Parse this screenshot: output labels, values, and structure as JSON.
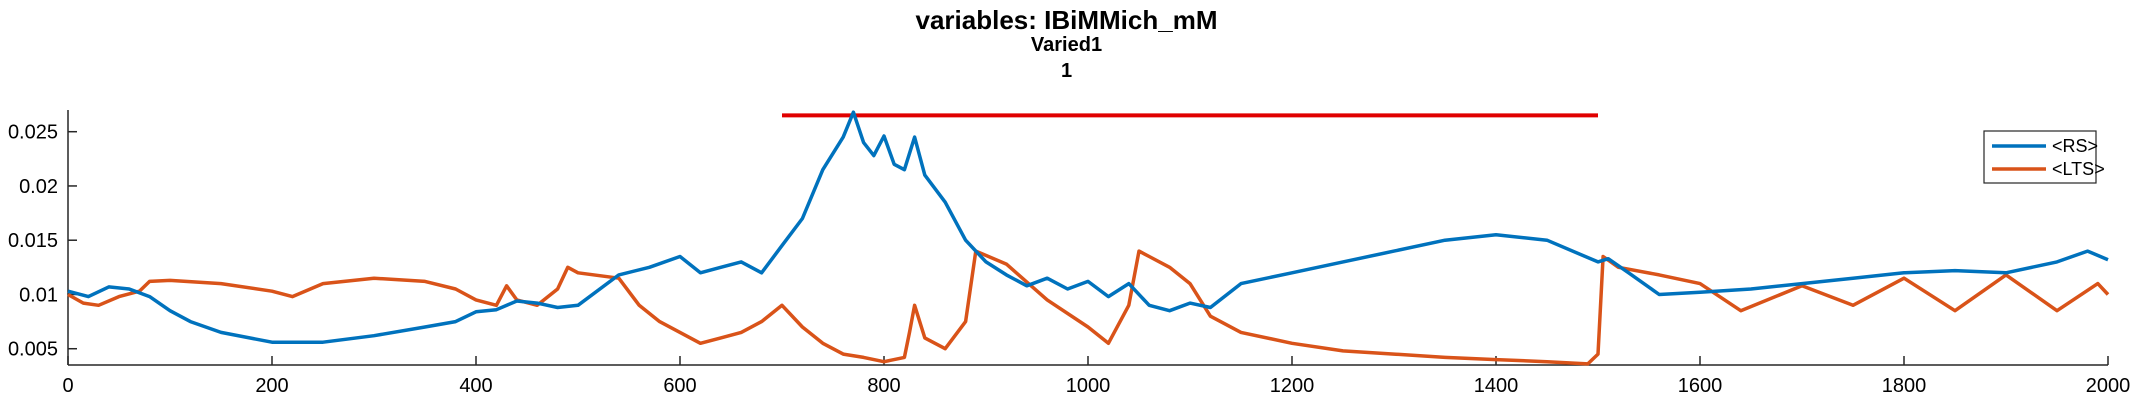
{
  "chart_data": {
    "type": "line",
    "title": "variables: IBiMMich_mM",
    "subtitle_lines": [
      "Varied1",
      "1"
    ],
    "xlabel": "",
    "ylabel": "",
    "xlim": [
      0,
      2000
    ],
    "ylim": [
      0.0035,
      0.027
    ],
    "xticks": [
      0,
      200,
      400,
      600,
      800,
      1000,
      1200,
      1400,
      1600,
      1800,
      2000
    ],
    "yticks": [
      0.005,
      0.01,
      0.015,
      0.02,
      0.025
    ],
    "ytick_labels": [
      "0.005",
      "0.01",
      "0.015",
      "0.02",
      "0.025"
    ],
    "grid": false,
    "legend_placement": "top-right",
    "bar": {
      "x_start": 700,
      "x_end": 1500,
      "y": 0.0265,
      "color": "#e00000"
    },
    "series": [
      {
        "name": "<RS>",
        "color": "#0072BD",
        "x": [
          0,
          20,
          40,
          60,
          80,
          100,
          120,
          150,
          200,
          250,
          300,
          350,
          380,
          400,
          420,
          440,
          460,
          480,
          500,
          540,
          570,
          600,
          620,
          640,
          660,
          680,
          700,
          720,
          740,
          760,
          770,
          780,
          790,
          800,
          810,
          820,
          830,
          840,
          860,
          880,
          900,
          920,
          940,
          960,
          980,
          1000,
          1020,
          1040,
          1060,
          1080,
          1100,
          1120,
          1150,
          1200,
          1250,
          1300,
          1350,
          1400,
          1450,
          1500,
          1510,
          1530,
          1560,
          1600,
          1650,
          1700,
          1750,
          1800,
          1850,
          1900,
          1950,
          1980,
          2000
        ],
        "y": [
          0.0103,
          0.0098,
          0.0107,
          0.0105,
          0.0098,
          0.0085,
          0.0075,
          0.0065,
          0.0056,
          0.0056,
          0.0062,
          0.007,
          0.0075,
          0.0084,
          0.0086,
          0.0094,
          0.0092,
          0.0088,
          0.009,
          0.0118,
          0.0125,
          0.0135,
          0.012,
          0.0125,
          0.013,
          0.012,
          0.0145,
          0.017,
          0.0215,
          0.0245,
          0.0268,
          0.024,
          0.0228,
          0.0246,
          0.022,
          0.0215,
          0.0245,
          0.021,
          0.0185,
          0.015,
          0.013,
          0.0118,
          0.0108,
          0.0115,
          0.0105,
          0.0112,
          0.0098,
          0.011,
          0.009,
          0.0085,
          0.0092,
          0.0088,
          0.011,
          0.012,
          0.013,
          0.014,
          0.015,
          0.0155,
          0.015,
          0.013,
          0.0133,
          0.012,
          0.01,
          0.0102,
          0.0105,
          0.011,
          0.0115,
          0.012,
          0.0122,
          0.012,
          0.013,
          0.014,
          0.0132
        ]
      },
      {
        "name": "<LTS>",
        "color": "#D95319",
        "x": [
          0,
          15,
          30,
          50,
          70,
          80,
          100,
          150,
          200,
          220,
          250,
          300,
          350,
          380,
          400,
          420,
          430,
          440,
          460,
          480,
          490,
          500,
          540,
          560,
          580,
          600,
          620,
          640,
          660,
          680,
          700,
          720,
          740,
          760,
          780,
          800,
          820,
          825,
          830,
          840,
          860,
          880,
          890,
          920,
          960,
          1000,
          1020,
          1040,
          1050,
          1060,
          1080,
          1100,
          1120,
          1150,
          1200,
          1250,
          1300,
          1350,
          1400,
          1450,
          1490,
          1500,
          1505,
          1520,
          1560,
          1600,
          1640,
          1700,
          1750,
          1800,
          1850,
          1900,
          1950,
          1990,
          2000
        ],
        "y": [
          0.01,
          0.0092,
          0.009,
          0.0098,
          0.0103,
          0.0112,
          0.0113,
          0.011,
          0.0103,
          0.0098,
          0.011,
          0.0115,
          0.0112,
          0.0105,
          0.0095,
          0.009,
          0.0108,
          0.0095,
          0.009,
          0.0105,
          0.0125,
          0.012,
          0.0115,
          0.009,
          0.0075,
          0.0065,
          0.0055,
          0.006,
          0.0065,
          0.0075,
          0.009,
          0.007,
          0.0055,
          0.0045,
          0.0042,
          0.0038,
          0.0042,
          0.0065,
          0.009,
          0.006,
          0.005,
          0.0075,
          0.014,
          0.0128,
          0.0095,
          0.007,
          0.0055,
          0.009,
          0.014,
          0.0135,
          0.0125,
          0.011,
          0.008,
          0.0065,
          0.0055,
          0.0048,
          0.0045,
          0.0042,
          0.004,
          0.0038,
          0.0036,
          0.0045,
          0.0135,
          0.0125,
          0.0118,
          0.011,
          0.0085,
          0.0108,
          0.009,
          0.0115,
          0.0085,
          0.0118,
          0.0085,
          0.011,
          0.01
        ]
      }
    ]
  }
}
